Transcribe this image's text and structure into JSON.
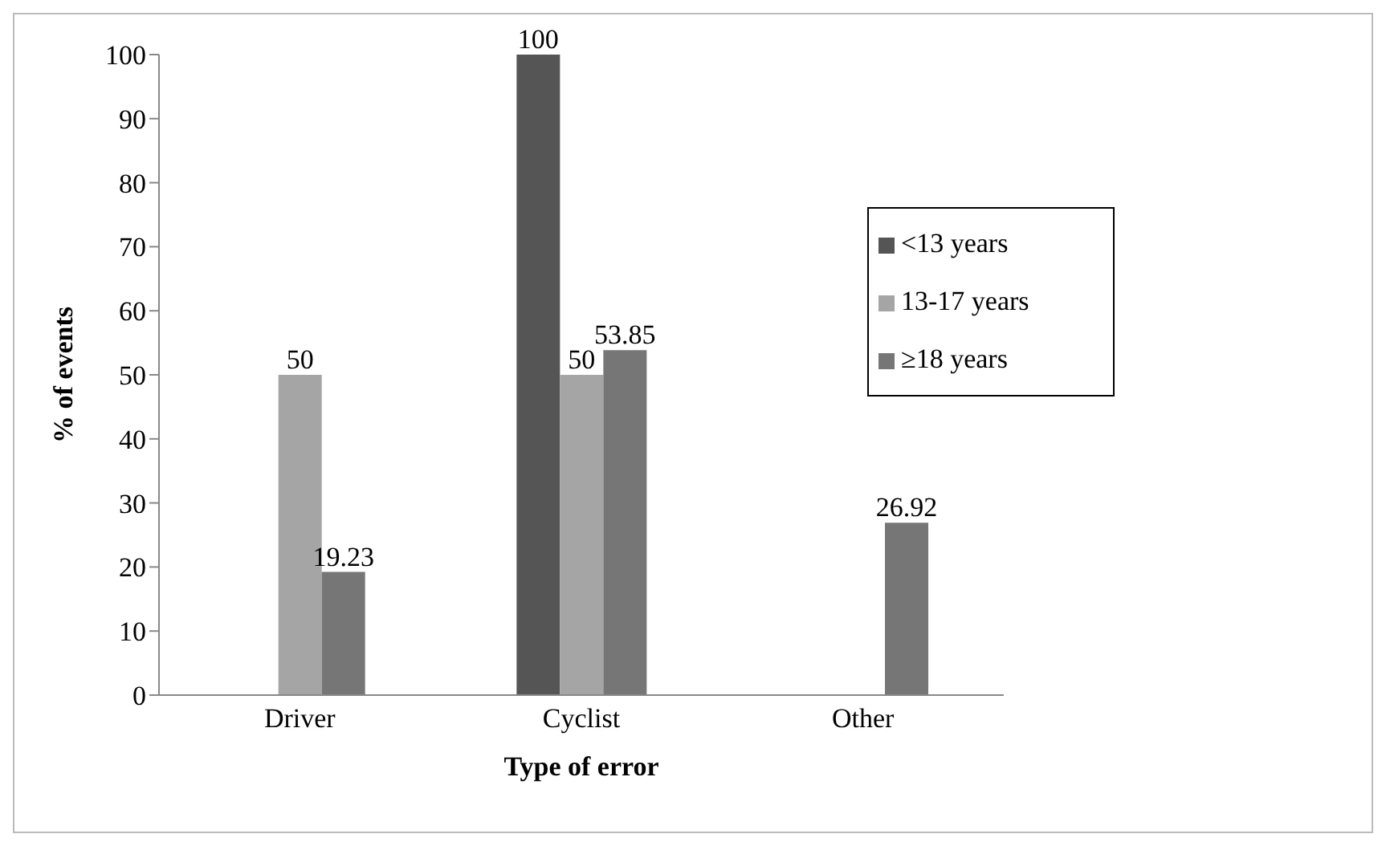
{
  "chart_data": {
    "type": "bar",
    "xlabel": "Type of error",
    "ylabel": "% of events",
    "categories": [
      "Driver",
      "Cyclist",
      "Other"
    ],
    "series": [
      {
        "name": "<13 years",
        "color": "#555555",
        "values": [
          null,
          100,
          null
        ]
      },
      {
        "name": "13-17 years",
        "color": "#a5a5a5",
        "values": [
          50,
          50,
          null
        ]
      },
      {
        "name": "≥18 years",
        "color": "#767676",
        "values": [
          19.23,
          53.85,
          26.92
        ]
      }
    ],
    "ylim": [
      0,
      100
    ],
    "yticks": [
      0,
      10,
      20,
      30,
      40,
      50,
      60,
      70,
      80,
      90,
      100
    ],
    "grid": false,
    "legend": "right",
    "data_labels": true
  }
}
